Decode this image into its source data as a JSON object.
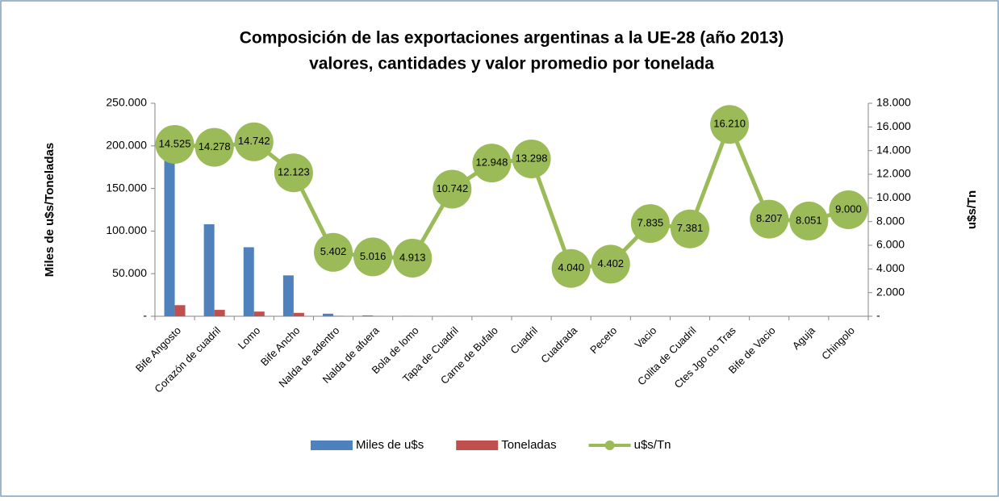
{
  "chart_data": {
    "type": "bar-line",
    "title": "Composición de las exportaciones argentinas a la UE-28 (año 2013)",
    "subtitle": "valores, cantidades y valor promedio por tonelada",
    "y_label": "Miles de u$s/Toneladas",
    "y2_label": "u$s/Tn",
    "categories": [
      "Bife Angosto",
      "Corazón de cuadril",
      "Lomo",
      "Bife Ancho",
      "Nalda de adentro",
      "Nalda de afuera",
      "Bola de lomo",
      "Tapa de Cuadril",
      "Carne de Bufalo",
      "Cuadril",
      "Cuadrada",
      "Peceto",
      "Vacio",
      "Colita de Cuadril",
      "Ctes Jgo cto Tras",
      "Bife de Vacio",
      "Aguja",
      "Chingolo"
    ],
    "series": [
      {
        "name": "Miles de u$s",
        "color": "#4f81bd",
        "kind": "bar",
        "values": [
          190000,
          108000,
          81000,
          48000,
          3000,
          1000,
          500,
          200,
          100,
          100,
          50,
          50,
          50,
          30,
          30,
          20,
          20,
          10
        ]
      },
      {
        "name": "Toneladas",
        "color": "#c0504d",
        "kind": "bar",
        "values": [
          13000,
          7500,
          5500,
          4000,
          500,
          200,
          100,
          20,
          10,
          10,
          10,
          10,
          5,
          5,
          2,
          2,
          2,
          1
        ]
      },
      {
        "name": "u$s/Tn",
        "color": "#9bbb59",
        "kind": "line",
        "axis": "y2",
        "values": [
          14525,
          14278,
          14742,
          12123,
          5402,
          5016,
          4913,
          10742,
          12948,
          13298,
          4040,
          4402,
          7835,
          7381,
          16210,
          8207,
          8051,
          9000
        ],
        "value_labels": [
          "14.525",
          "14.278",
          "14.742",
          "12.123",
          "5.402",
          "5.016",
          "4.913",
          "10.742",
          "12.948",
          "13.298",
          "4.040",
          "4.402",
          "7.835",
          "7.381",
          "16.210",
          "8.207",
          "8.051",
          "9.000"
        ]
      }
    ],
    "ylim": [
      0,
      250000
    ],
    "yticks": [
      {
        "value": 0,
        "label": "-"
      },
      {
        "value": 50000,
        "label": "50.000"
      },
      {
        "value": 100000,
        "label": "100.000"
      },
      {
        "value": 150000,
        "label": "150.000"
      },
      {
        "value": 200000,
        "label": "200.000"
      },
      {
        "value": 250000,
        "label": "250.000"
      }
    ],
    "y2lim": [
      0,
      18000
    ],
    "y2ticks": [
      {
        "value": 0,
        "label": "-"
      },
      {
        "value": 2000,
        "label": "2.000"
      },
      {
        "value": 4000,
        "label": "4.000"
      },
      {
        "value": 6000,
        "label": "6.000"
      },
      {
        "value": 8000,
        "label": "8.000"
      },
      {
        "value": 10000,
        "label": "10.000"
      },
      {
        "value": 12000,
        "label": "12.000"
      },
      {
        "value": 14000,
        "label": "14.000"
      },
      {
        "value": 16000,
        "label": "16.000"
      },
      {
        "value": 18000,
        "label": "18.000"
      }
    ],
    "legend": "bottom"
  }
}
